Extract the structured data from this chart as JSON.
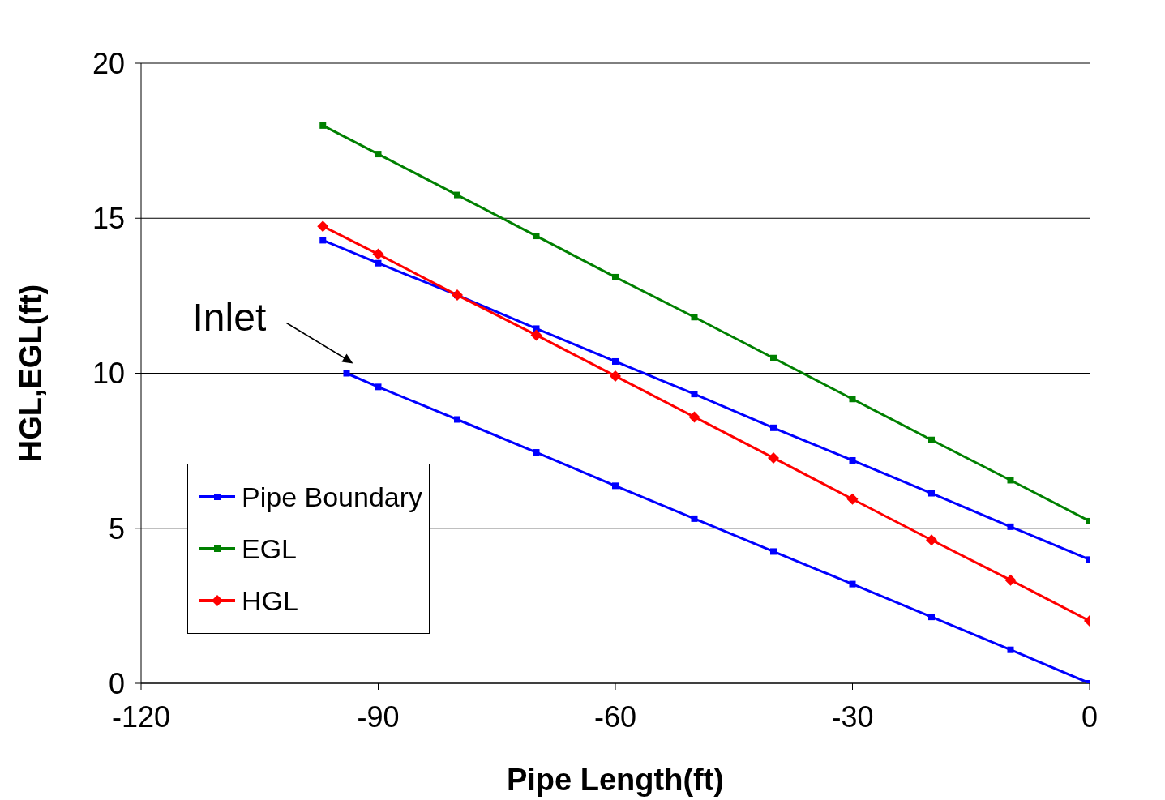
{
  "chart_data": {
    "type": "line",
    "xlabel": "Pipe Length(ft)",
    "ylabel": "HGL,EGL(ft)",
    "xlim": [
      -120,
      0
    ],
    "xticks": [
      -120,
      -90,
      -60,
      -30,
      0
    ],
    "ylim": [
      0,
      20
    ],
    "yticks": [
      0,
      5,
      10,
      15,
      20
    ],
    "grid": "y",
    "legend": "bottom left",
    "annotations": [
      {
        "text": "Inlet",
        "x": -94,
        "y": 10
      }
    ],
    "series": [
      {
        "name": "Pipe Boundary",
        "color": "#0000ff",
        "marker": "square",
        "x": [
          -94,
          -90,
          -80,
          -70,
          -60,
          -50,
          -40,
          -30,
          -20,
          -10,
          0
        ],
        "values": [
          10.0,
          9.56,
          8.51,
          7.45,
          6.37,
          5.31,
          4.25,
          3.2,
          2.14,
          1.08,
          0
        ]
      },
      {
        "name": "EGL",
        "color": "#008000",
        "marker": "square",
        "x": [
          -97,
          -90,
          -80,
          -70,
          -60,
          -50,
          -40,
          -30,
          -20,
          -10,
          0
        ],
        "values": [
          17.99,
          17.07,
          15.75,
          14.43,
          13.1,
          11.81,
          10.49,
          9.17,
          7.85,
          6.55,
          5.23
        ]
      },
      {
        "name": "HGL",
        "color": "#ff0000",
        "marker": "diamond",
        "x": [
          -97,
          -90,
          -80,
          -70,
          -60,
          -50,
          -40,
          -30,
          -20,
          -10,
          0
        ],
        "values": [
          14.74,
          13.84,
          12.52,
          11.23,
          9.91,
          8.59,
          7.27,
          5.94,
          4.62,
          3.33,
          2.01
        ]
      },
      {
        "color": "#0000ff",
        "marker": "square",
        "x": [
          -97,
          -90,
          -80,
          -70,
          -60,
          -50,
          -40,
          -30,
          -20,
          -10,
          0
        ],
        "values": [
          14.29,
          13.55,
          12.52,
          11.44,
          10.38,
          9.33,
          8.24,
          7.19,
          6.13,
          5.05,
          3.99
        ]
      }
    ]
  }
}
